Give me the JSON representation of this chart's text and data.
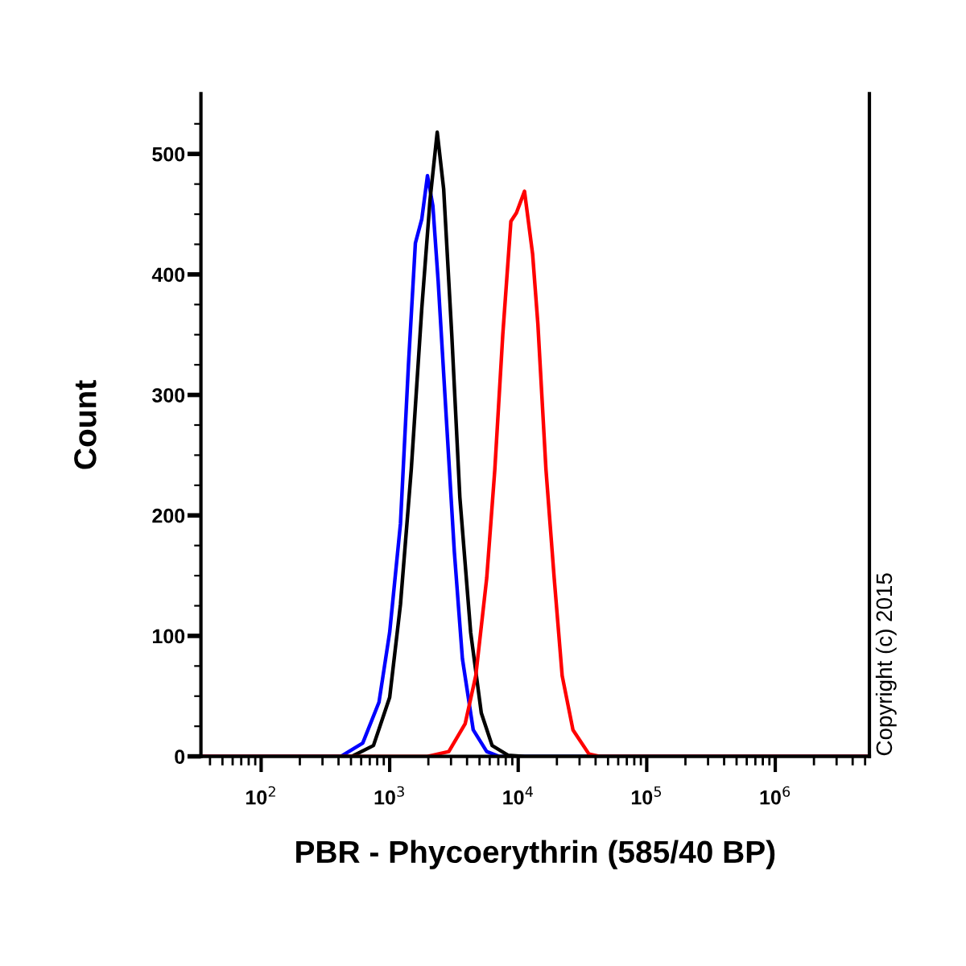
{
  "chart_data": {
    "type": "line",
    "xlabel": "PBR - Phycoerythrin (585/40 BP)",
    "ylabel": "Count",
    "log": "x",
    "xlim": [
      34,
      5400000
    ],
    "ylim": [
      0,
      550
    ],
    "xticks": [
      {
        "value": 100,
        "label": "10$^{2}$"
      },
      {
        "value": 1000,
        "label": "10$^{3}$"
      },
      {
        "value": 10000,
        "label": "10$^{4}$"
      },
      {
        "value": 100000,
        "label": "10$^{5}$"
      },
      {
        "value": 1000000,
        "label": "10$^{6}$"
      }
    ],
    "yticks": [
      0,
      {
        "value": 25,
        "label": null
      },
      {
        "value": 50,
        "label": null
      },
      {
        "value": 75,
        "label": null
      },
      100,
      {
        "value": 125,
        "label": null
      },
      {
        "value": 150,
        "label": null
      },
      {
        "value": 175,
        "label": null
      },
      200,
      {
        "value": 225,
        "label": null
      },
      {
        "value": 250,
        "label": null
      },
      {
        "value": 275,
        "label": null
      },
      300,
      {
        "value": 325,
        "label": null
      },
      {
        "value": 350,
        "label": null
      },
      {
        "value": 375,
        "label": null
      },
      400,
      {
        "value": 425,
        "label": null
      },
      {
        "value": 450,
        "label": null
      },
      {
        "value": 475,
        "label": null
      },
      500,
      {
        "value": 525,
        "label": null
      }
    ],
    "grid": false,
    "legend": false,
    "marker": "none",
    "line_style": "solid",
    "series": [
      {
        "color": "#0000ff",
        "x": [
          34,
          417,
          617,
          826,
          1000,
          1213,
          1403,
          1585,
          1778,
          1968,
          2168,
          2382,
          2754,
          3184,
          3681,
          4467,
          5689,
          7079,
          5400000
        ],
        "values": [
          0,
          0,
          11,
          45,
          103,
          193,
          327,
          426,
          446,
          482,
          457,
          395,
          282,
          170,
          81,
          22,
          4,
          0,
          0
        ]
      },
      {
        "color": "#000000",
        "x": [
          34,
          509,
          748,
          1000,
          1213,
          1472,
          1778,
          2061,
          2344,
          2630,
          3041,
          3516,
          4266,
          5164,
          6266,
          8318,
          11220,
          5400000
        ],
        "values": [
          0,
          0,
          9,
          49,
          126,
          238,
          372,
          462,
          518,
          471,
          350,
          215,
          103,
          36,
          9,
          1,
          0,
          0
        ]
      },
      {
        "color": "#ff0000",
        "x": [
          34,
          1968,
          2884,
          3864,
          4677,
          5689,
          6577,
          7586,
          8770,
          9683,
          11194,
          12942,
          14223,
          16444,
          19055,
          21979,
          26669,
          35481,
          43152,
          5400000
        ],
        "values": [
          0,
          0,
          4,
          27,
          67,
          148,
          238,
          350,
          444,
          451,
          469,
          417,
          359,
          238,
          148,
          67,
          22,
          2,
          0,
          0
        ]
      }
    ],
    "annotations": [
      "Copyright (c) 2015"
    ]
  }
}
